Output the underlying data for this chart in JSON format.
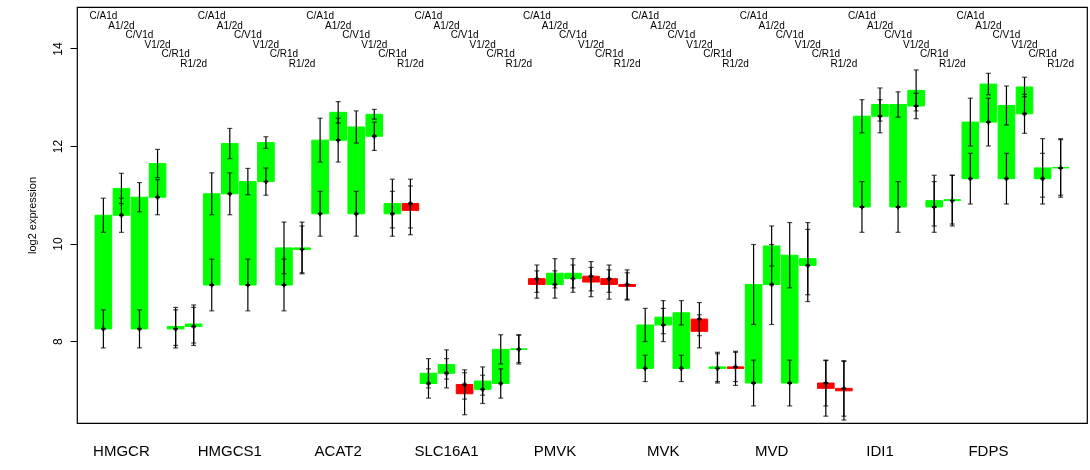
{
  "chart_data": {
    "type": "bar",
    "ylabel": "log2 expression",
    "categories": [
      null,
      "HMGCR",
      null,
      null,
      null,
      null,
      null,
      "HMGCS1",
      null,
      null,
      null,
      null,
      null,
      "ACAT2",
      null,
      null,
      null,
      null,
      null,
      "SLC16A1",
      null,
      null,
      null,
      null,
      null,
      "PMVK",
      null,
      null,
      null,
      null,
      null,
      "MVK",
      null,
      null,
      null,
      null,
      null,
      "MVD",
      null,
      null,
      null,
      null,
      null,
      "IDI1",
      null,
      null,
      null,
      null,
      null,
      "FDPS",
      null,
      null,
      null,
      null
    ],
    "annotations": [
      "C/A1d",
      "A1/2d",
      "C/V1d",
      "V1/2d",
      "C/R1d",
      "R1/2d",
      "C/A1d",
      "A1/2d",
      "C/V1d",
      "V1/2d",
      "C/R1d",
      "R1/2d",
      "C/A1d",
      "A1/2d",
      "C/V1d",
      "V1/2d",
      "C/R1d",
      "R1/2d",
      "C/A1d",
      "A1/2d",
      "C/V1d",
      "V1/2d",
      "C/R1d",
      "R1/2d",
      "C/A1d",
      "A1/2d",
      "C/V1d",
      "V1/2d",
      "C/R1d",
      "R1/2d",
      "C/A1d",
      "A1/2d",
      "C/V1d",
      "V1/2d",
      "C/R1d",
      "R1/2d",
      "C/A1d",
      "A1/2d",
      "C/V1d",
      "V1/2d",
      "C/R1d",
      "R1/2d",
      "C/A1d",
      "A1/2d",
      "C/V1d",
      "V1/2d",
      "C/R1d",
      "R1/2d",
      "C/A1d",
      "A1/2d",
      "C/V1d",
      "V1/2d",
      "C/R1d",
      "R1/2d"
    ],
    "ylim": [
      6.32,
      14.85
    ],
    "yticks": [
      8,
      10,
      12,
      14
    ],
    "grid": false,
    "series": [
      {
        "base": [
          8.25,
          10.58,
          8.25,
          10.95,
          8.25,
          8.3,
          9.15,
          11.02,
          9.15,
          11.27,
          9.15,
          9.88,
          10.61,
          12.12,
          10.61,
          12.2,
          10.61,
          10.82,
          7.13,
          7.34,
          7.11,
          7.01,
          7.13,
          7.83,
          9.28,
          9.16,
          9.28,
          9.33,
          9.28,
          9.16,
          7.44,
          8.33,
          7.44,
          8.45,
          7.44,
          7.47,
          7.14,
          9.16,
          7.14,
          9.55,
          7.14,
          7.03,
          10.75,
          12.61,
          10.75,
          12.82,
          10.75,
          10.88,
          11.33,
          12.49,
          11.33,
          12.66,
          11.33,
          11.55
        ],
        "values": [
          2.33,
          0.55,
          2.7,
          0.69,
          0.05,
          0.05,
          1.87,
          1.03,
          2.12,
          0.8,
          0.76,
          0.03,
          1.51,
          0.57,
          1.78,
          0.45,
          0.21,
          -0.14,
          0.21,
          0.18,
          -0.19,
          0.17,
          0.7,
          0.01,
          -0.12,
          0.23,
          0.11,
          -0.12,
          -0.12,
          -0.04,
          0.89,
          0.16,
          1.14,
          -0.25,
          0.03,
          -0.03,
          2.02,
          0.79,
          2.62,
          0.14,
          -0.11,
          -0.05,
          1.86,
          0.24,
          2.1,
          0.32,
          0.13,
          0.02,
          1.16,
          0.78,
          1.5,
          0.55,
          0.22,
          0.01
        ],
        "errors": [
          0.35,
          0.31,
          0.3,
          0.29,
          0.39,
          0.39,
          0.43,
          0.31,
          0.27,
          0.12,
          0.53,
          0.53,
          0.45,
          0.22,
          0.33,
          0.1,
          0.5,
          0.5,
          0.3,
          0.3,
          0.43,
          0.29,
          0.3,
          0.28,
          0.28,
          0.3,
          0.3,
          0.3,
          0.3,
          0.28,
          0.34,
          0.34,
          0.25,
          0.34,
          0.3,
          0.35,
          0.82,
          0.41,
          0.67,
          0.74,
          0.57,
          0.6,
          0.34,
          0.34,
          0.26,
          0.42,
          0.52,
          0.5,
          0.49,
          0.22,
          0.4,
          0.2,
          0.6,
          0.57
        ],
        "colors": [
          "#00ff00",
          "#00ff00",
          "#00ff00",
          "#00ff00",
          "#00ff00",
          "#00ff00",
          "#00ff00",
          "#00ff00",
          "#00ff00",
          "#00ff00",
          "#00ff00",
          "#00ff00",
          "#00ff00",
          "#00ff00",
          "#00ff00",
          "#00ff00",
          "#00ff00",
          "#ff0000",
          "#00ff00",
          "#00ff00",
          "#ff0000",
          "#00ff00",
          "#00ff00",
          "#00ff00",
          "#ff0000",
          "#00ff00",
          "#00ff00",
          "#ff0000",
          "#ff0000",
          "#ff0000",
          "#00ff00",
          "#00ff00",
          "#00ff00",
          "#ff0000",
          "#00ff00",
          "#ff0000",
          "#00ff00",
          "#00ff00",
          "#00ff00",
          "#00ff00",
          "#ff0000",
          "#ff0000",
          "#00ff00",
          "#00ff00",
          "#00ff00",
          "#00ff00",
          "#00ff00",
          "#00ff00",
          "#00ff00",
          "#00ff00",
          "#00ff00",
          "#00ff00",
          "#00ff00",
          "#00ff00"
        ]
      },
      {
        "type": "scatter",
        "marker": "cross",
        "color": "#000000",
        "values": [
          8.25,
          10.58,
          8.25,
          10.95,
          8.25,
          8.3,
          9.15,
          11.02,
          9.15,
          11.27,
          9.15,
          9.88,
          10.61,
          12.12,
          10.61,
          12.2,
          10.61,
          10.82,
          7.13,
          7.34,
          7.11,
          7.01,
          7.13,
          7.83,
          9.28,
          9.16,
          9.28,
          9.33,
          9.28,
          9.16,
          7.44,
          8.33,
          7.44,
          8.45,
          7.44,
          7.47,
          7.14,
          9.16,
          7.14,
          9.55,
          7.14,
          7.03,
          10.75,
          12.61,
          10.75,
          12.82,
          10.75,
          10.88,
          11.33,
          12.49,
          11.33,
          12.66,
          11.33,
          11.55
        ],
        "errors": [
          0.39,
          0.35,
          0.39,
          0.36,
          0.39,
          0.39,
          0.53,
          0.43,
          0.53,
          0.28,
          0.53,
          0.48,
          0.46,
          0.45,
          0.46,
          0.29,
          0.46,
          0.5,
          0.3,
          0.3,
          0.3,
          0.29,
          0.3,
          0.3,
          0.28,
          0.28,
          0.28,
          0.3,
          0.28,
          0.3,
          0.27,
          0.34,
          0.27,
          0.34,
          0.3,
          0.3,
          0.47,
          0.82,
          0.47,
          0.74,
          0.47,
          0.57,
          0.52,
          0.34,
          0.52,
          0.26,
          0.52,
          0.52,
          0.52,
          0.49,
          0.52,
          0.4,
          0.52,
          0.6
        ]
      }
    ]
  }
}
